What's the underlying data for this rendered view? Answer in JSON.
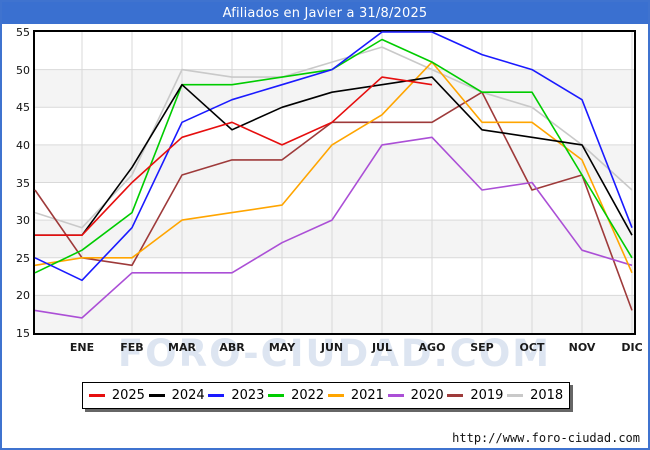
{
  "window": {
    "title": "Afiliados en Javier a 31/8/2025",
    "url": "http://www.foro-ciudad.com",
    "watermark": "FORO-CIUDAD.COM"
  },
  "chart_data": {
    "type": "line",
    "title": "Afiliados en Javier a 31/8/2025",
    "x_positions": [
      "start",
      "ENE",
      "FEB",
      "MAR",
      "ABR",
      "MAY",
      "JUN",
      "JUL",
      "AGO",
      "SEP",
      "OCT",
      "NOV",
      "DIC"
    ],
    "x_categories": [
      "ENE",
      "FEB",
      "MAR",
      "ABR",
      "MAY",
      "JUN",
      "JUL",
      "AGO",
      "SEP",
      "OCT",
      "NOV",
      "DIC"
    ],
    "y_ticks": [
      15,
      20,
      25,
      30,
      35,
      40,
      45,
      50,
      55
    ],
    "ylim": [
      15,
      55
    ],
    "grid": true,
    "band_color": "#f4f4f4",
    "grid_color": "#d9d9d9",
    "legend_position": "bottom",
    "series": [
      {
        "name": "2025",
        "color": "#e60e0e",
        "values": [
          28,
          28,
          35,
          41,
          43,
          40,
          43,
          49,
          48
        ]
      },
      {
        "name": "2024",
        "color": "#000000",
        "values": [
          28,
          28,
          37,
          48,
          42,
          45,
          47,
          48,
          49,
          42,
          41,
          40,
          28
        ]
      },
      {
        "name": "2023",
        "color": "#1a1aff",
        "values": [
          25,
          22,
          29,
          43,
          46,
          48,
          50,
          55,
          55,
          52,
          50,
          46,
          29
        ]
      },
      {
        "name": "2022",
        "color": "#00cc00",
        "values": [
          23,
          26,
          31,
          48,
          48,
          49,
          50,
          54,
          51,
          47,
          47,
          36,
          25
        ]
      },
      {
        "name": "2021",
        "color": "#ffa500",
        "values": [
          24,
          25,
          25,
          30,
          31,
          32,
          40,
          44,
          51,
          43,
          43,
          38,
          23
        ]
      },
      {
        "name": "2020",
        "color": "#ab4fd6",
        "values": [
          18,
          17,
          23,
          23,
          23,
          27,
          30,
          40,
          41,
          34,
          35,
          26,
          24
        ]
      },
      {
        "name": "2019",
        "color": "#9e3a3a",
        "values": [
          34,
          25,
          24,
          36,
          38,
          38,
          43,
          43,
          43,
          47,
          34,
          36,
          18
        ]
      },
      {
        "name": "2018",
        "color": "#c9c9c9",
        "values": [
          31,
          29,
          36,
          50,
          49,
          49,
          51,
          53,
          50,
          47,
          45,
          40,
          34
        ]
      }
    ]
  }
}
